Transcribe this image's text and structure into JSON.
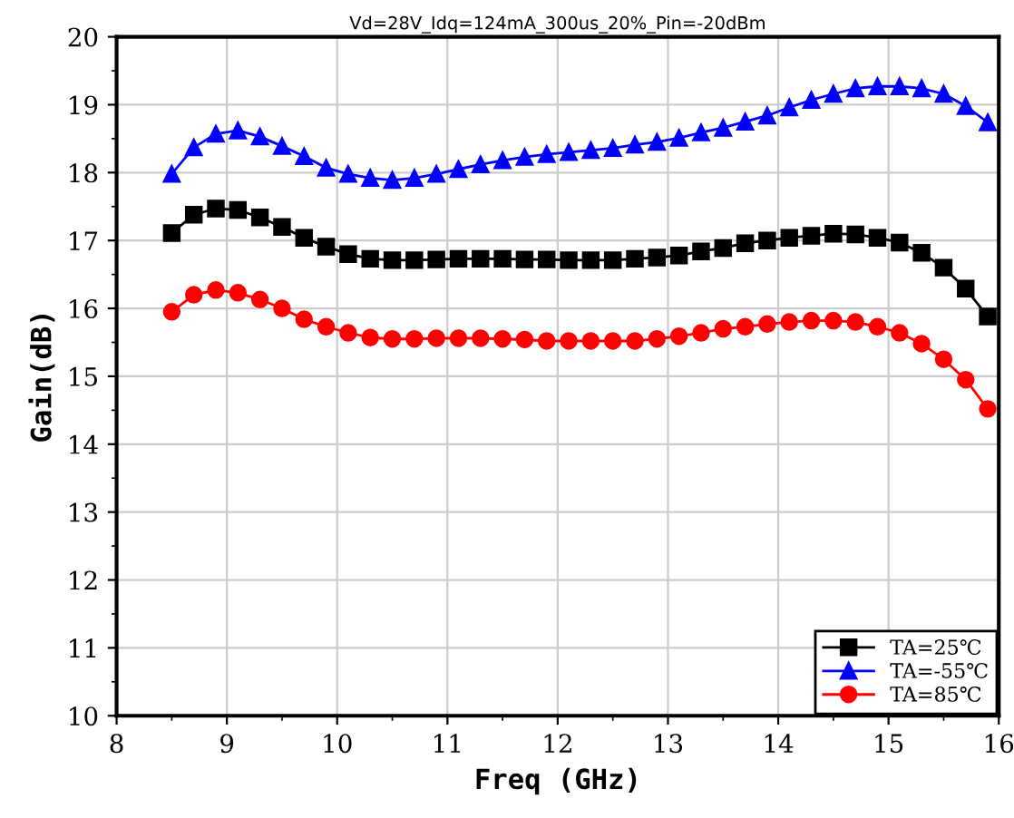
{
  "chart_data": {
    "type": "line",
    "title": "Vd=28V_Idq=124mA_300us_20%_Pin=-20dBm",
    "xlabel": "Freq (GHz)",
    "ylabel": "Gain(dB)",
    "x": [
      8.5,
      8.7,
      8.9,
      9.1,
      9.3,
      9.5,
      9.7,
      9.9,
      10.1,
      10.3,
      10.5,
      10.7,
      10.9,
      11.1,
      11.3,
      11.5,
      11.7,
      11.9,
      12.1,
      12.3,
      12.5,
      12.7,
      12.9,
      13.1,
      13.3,
      13.5,
      13.7,
      13.9,
      14.1,
      14.3,
      14.5,
      14.7,
      14.9,
      15.1,
      15.3,
      15.5,
      15.7,
      15.9
    ],
    "series": [
      {
        "name": "TA=25℃",
        "color": "#000000",
        "marker": "square",
        "values": [
          17.11,
          17.38,
          17.47,
          17.45,
          17.34,
          17.2,
          17.04,
          16.91,
          16.8,
          16.73,
          16.71,
          16.71,
          16.72,
          16.73,
          16.73,
          16.73,
          16.72,
          16.72,
          16.71,
          16.71,
          16.71,
          16.73,
          16.75,
          16.78,
          16.84,
          16.89,
          16.96,
          17.0,
          17.04,
          17.07,
          17.1,
          17.09,
          17.04,
          16.97,
          16.82,
          16.6,
          16.29,
          15.88
        ]
      },
      {
        "name": "TA=-55℃",
        "color": "#0000ff",
        "marker": "triangle",
        "values": [
          17.98,
          18.37,
          18.57,
          18.62,
          18.53,
          18.39,
          18.24,
          18.07,
          17.98,
          17.92,
          17.89,
          17.92,
          17.98,
          18.05,
          18.12,
          18.18,
          18.23,
          18.27,
          18.3,
          18.33,
          18.36,
          18.41,
          18.45,
          18.51,
          18.59,
          18.66,
          18.75,
          18.84,
          18.96,
          19.07,
          19.16,
          19.24,
          19.27,
          19.27,
          19.24,
          19.16,
          18.98,
          18.74
        ]
      },
      {
        "name": "TA=85℃",
        "color": "#ff0000",
        "marker": "circle",
        "values": [
          15.95,
          16.2,
          16.27,
          16.23,
          16.13,
          16.0,
          15.84,
          15.73,
          15.64,
          15.57,
          15.55,
          15.55,
          15.56,
          15.56,
          15.56,
          15.55,
          15.54,
          15.52,
          15.52,
          15.52,
          15.52,
          15.52,
          15.55,
          15.59,
          15.64,
          15.7,
          15.73,
          15.77,
          15.8,
          15.82,
          15.82,
          15.8,
          15.73,
          15.64,
          15.48,
          15.25,
          14.95,
          14.52
        ]
      }
    ],
    "xlim": [
      8,
      16
    ],
    "ylim": [
      10,
      20
    ],
    "xticks": [
      8,
      9,
      10,
      11,
      12,
      13,
      14,
      15,
      16
    ],
    "yticks": [
      10,
      11,
      12,
      13,
      14,
      15,
      16,
      17,
      18,
      19,
      20
    ],
    "grid": true,
    "legend": "bottom right",
    "line_style": "solid"
  }
}
